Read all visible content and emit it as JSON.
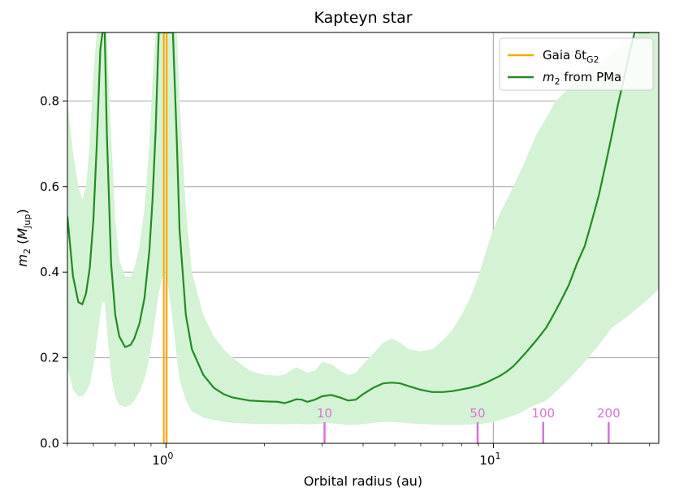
{
  "chart_data": {
    "type": "line",
    "title": "Kapteyn star",
    "xlabel": "Orbital radius (au)",
    "ylabel": "m_2 (M_Jup)",
    "x_scale": "log",
    "xlim": [
      0.5,
      32
    ],
    "ylim": [
      0.0,
      0.96
    ],
    "x_ticks": [
      {
        "value": 1,
        "label": "10",
        "exp": "0"
      },
      {
        "value": 10,
        "label": "10",
        "exp": "1"
      }
    ],
    "y_ticks": [
      {
        "value": 0.0,
        "label": "0.0"
      },
      {
        "value": 0.2,
        "label": "0.2"
      },
      {
        "value": 0.4,
        "label": "0.4"
      },
      {
        "value": 0.6,
        "label": "0.6"
      },
      {
        "value": 0.8,
        "label": "0.8"
      }
    ],
    "grid": true,
    "legend": {
      "placement": "top-right",
      "entries": [
        {
          "label": "Gaia δt",
          "sub": "G2",
          "color": "#ffa500"
        },
        {
          "label": "m",
          "sub": "2",
          "suffix": " from PMa",
          "color": "#228b22"
        }
      ]
    },
    "colors": {
      "band": "#d4f2d4",
      "line": "#228b22",
      "gaia": "#ffa500",
      "period": "#da70d6",
      "grid": "#b0b0b0"
    },
    "gaia_lines": [
      0.985,
      1.005
    ],
    "period_markers": [
      {
        "label": "10",
        "x": 3.05
      },
      {
        "label": "50",
        "x": 8.95
      },
      {
        "label": "100",
        "x": 14.2
      },
      {
        "label": "200",
        "x": 22.5
      }
    ],
    "series": [
      {
        "name": "m_2 from PMa",
        "x": [
          0.5,
          0.52,
          0.54,
          0.555,
          0.57,
          0.585,
          0.6,
          0.615,
          0.63,
          0.64,
          0.65,
          0.66,
          0.68,
          0.7,
          0.72,
          0.75,
          0.78,
          0.8,
          0.83,
          0.86,
          0.89,
          0.91,
          0.93,
          0.95,
          0.97,
          0.99,
          1.0,
          1.01,
          1.03,
          1.05,
          1.08,
          1.1,
          1.15,
          1.2,
          1.3,
          1.4,
          1.5,
          1.6,
          1.8,
          2.0,
          2.2,
          2.3,
          2.4,
          2.5,
          2.6,
          2.7,
          2.85,
          3.0,
          3.2,
          3.4,
          3.6,
          3.8,
          4.0,
          4.3,
          4.6,
          4.9,
          5.2,
          5.5,
          6.0,
          6.5,
          7.0,
          7.5,
          8.0,
          8.5,
          9.0,
          9.5,
          10.0,
          10.5,
          11.0,
          11.5,
          12.0,
          12.5,
          13.0,
          13.5,
          14.0,
          14.5,
          15.0,
          15.5,
          16.0,
          17.0,
          18.0,
          19.0,
          20.0,
          21.0,
          22.0,
          23.0,
          24.0,
          25.0,
          26.0,
          27.0,
          28.0,
          29.0,
          30.0
        ],
        "y": [
          0.53,
          0.39,
          0.33,
          0.325,
          0.35,
          0.41,
          0.52,
          0.7,
          0.92,
          0.96,
          0.96,
          0.72,
          0.42,
          0.3,
          0.25,
          0.225,
          0.23,
          0.245,
          0.28,
          0.34,
          0.45,
          0.57,
          0.73,
          0.96,
          0.96,
          0.96,
          0.96,
          0.96,
          0.96,
          0.96,
          0.7,
          0.5,
          0.3,
          0.22,
          0.16,
          0.13,
          0.115,
          0.107,
          0.1,
          0.098,
          0.097,
          0.094,
          0.098,
          0.103,
          0.102,
          0.097,
          0.102,
          0.11,
          0.113,
          0.107,
          0.1,
          0.102,
          0.115,
          0.13,
          0.14,
          0.142,
          0.14,
          0.134,
          0.125,
          0.12,
          0.12,
          0.122,
          0.126,
          0.13,
          0.135,
          0.142,
          0.15,
          0.158,
          0.168,
          0.18,
          0.195,
          0.21,
          0.225,
          0.24,
          0.255,
          0.27,
          0.29,
          0.31,
          0.33,
          0.37,
          0.42,
          0.46,
          0.52,
          0.58,
          0.65,
          0.72,
          0.79,
          0.85,
          0.91,
          0.96,
          0.96,
          0.96,
          0.96
        ]
      }
    ],
    "band": {
      "x": [
        0.5,
        0.52,
        0.54,
        0.555,
        0.57,
        0.585,
        0.6,
        0.615,
        0.63,
        0.64,
        0.65,
        0.66,
        0.68,
        0.7,
        0.72,
        0.75,
        0.78,
        0.8,
        0.83,
        0.86,
        0.89,
        0.91,
        0.93,
        0.95,
        0.97,
        0.99,
        1.0,
        1.01,
        1.03,
        1.05,
        1.08,
        1.1,
        1.15,
        1.2,
        1.3,
        1.4,
        1.5,
        1.6,
        1.8,
        2.0,
        2.2,
        2.3,
        2.4,
        2.5,
        2.6,
        2.7,
        2.85,
        3.0,
        3.2,
        3.4,
        3.6,
        3.8,
        4.0,
        4.3,
        4.6,
        4.9,
        5.2,
        5.5,
        6.0,
        6.5,
        7.0,
        7.5,
        8.0,
        8.5,
        9.0,
        9.5,
        10.0,
        10.5,
        11.0,
        11.5,
        12.0,
        12.5,
        13.0,
        13.5,
        14.0,
        14.5,
        15.0,
        15.5,
        16.0,
        17.0,
        18.0,
        19.0,
        20.0,
        21.0,
        22.0,
        23.0,
        24.0,
        25.0,
        26.0,
        27.0,
        28.0,
        29.0,
        30.0,
        32.0
      ],
      "upper": [
        0.8,
        0.68,
        0.6,
        0.57,
        0.6,
        0.7,
        0.86,
        0.96,
        0.96,
        0.96,
        0.96,
        0.96,
        0.72,
        0.52,
        0.43,
        0.39,
        0.39,
        0.41,
        0.46,
        0.55,
        0.7,
        0.85,
        0.96,
        0.96,
        0.96,
        0.96,
        0.96,
        0.96,
        0.96,
        0.96,
        0.96,
        0.8,
        0.55,
        0.4,
        0.3,
        0.25,
        0.22,
        0.2,
        0.17,
        0.16,
        0.158,
        0.16,
        0.17,
        0.178,
        0.172,
        0.165,
        0.17,
        0.19,
        0.185,
        0.17,
        0.16,
        0.165,
        0.185,
        0.21,
        0.235,
        0.245,
        0.235,
        0.22,
        0.215,
        0.22,
        0.24,
        0.265,
        0.3,
        0.34,
        0.39,
        0.45,
        0.5,
        0.54,
        0.57,
        0.6,
        0.63,
        0.66,
        0.69,
        0.72,
        0.74,
        0.76,
        0.78,
        0.8,
        0.81,
        0.83,
        0.85,
        0.87,
        0.88,
        0.89,
        0.9,
        0.91,
        0.92,
        0.93,
        0.94,
        0.95,
        0.96,
        0.96,
        0.96,
        0.96
      ],
      "lower": [
        0.18,
        0.125,
        0.11,
        0.11,
        0.12,
        0.14,
        0.18,
        0.24,
        0.3,
        0.33,
        0.33,
        0.27,
        0.16,
        0.11,
        0.09,
        0.085,
        0.09,
        0.1,
        0.12,
        0.15,
        0.2,
        0.25,
        0.3,
        0.35,
        0.38,
        0.4,
        0.4,
        0.38,
        0.33,
        0.28,
        0.2,
        0.15,
        0.1,
        0.075,
        0.06,
        0.055,
        0.05,
        0.048,
        0.046,
        0.045,
        0.045,
        0.044,
        0.045,
        0.046,
        0.045,
        0.044,
        0.045,
        0.046,
        0.047,
        0.045,
        0.043,
        0.043,
        0.045,
        0.048,
        0.05,
        0.05,
        0.049,
        0.047,
        0.045,
        0.044,
        0.043,
        0.043,
        0.043,
        0.044,
        0.045,
        0.047,
        0.05,
        0.055,
        0.06,
        0.065,
        0.07,
        0.078,
        0.085,
        0.09,
        0.095,
        0.1,
        0.11,
        0.12,
        0.13,
        0.15,
        0.17,
        0.19,
        0.21,
        0.23,
        0.25,
        0.27,
        0.28,
        0.29,
        0.3,
        0.31,
        0.32,
        0.33,
        0.34,
        0.36
      ]
    }
  }
}
